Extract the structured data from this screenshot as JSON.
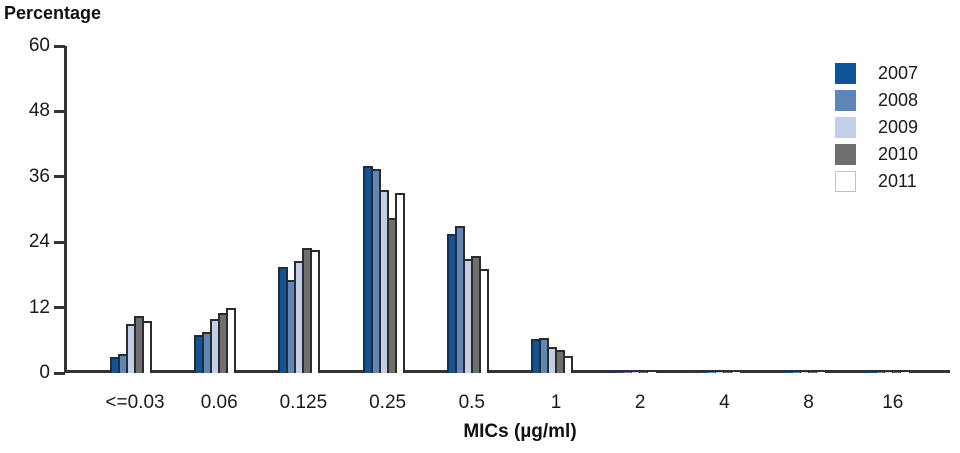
{
  "title": "Percentage",
  "xlabel": "MICs (µg/ml)",
  "chart_data": {
    "type": "bar",
    "title": "Percentage",
    "xlabel": "MICs (µg/ml)",
    "ylabel": "Percentage",
    "categories": [
      "<=0.03",
      "0.06",
      "0.125",
      "0.25",
      "0.5",
      "1",
      "2",
      "4",
      "8",
      "16"
    ],
    "series": [
      {
        "name": "2007",
        "color": "#0F5499",
        "values": [
          3.0,
          7.0,
          19.5,
          38.0,
          25.5,
          6.2,
          0.4,
          0.2,
          0.2,
          0.1
        ]
      },
      {
        "name": "2008",
        "color": "#5F86B8",
        "values": [
          3.5,
          7.5,
          17.0,
          37.5,
          27.0,
          6.5,
          0.3,
          0.2,
          0.2,
          0.1
        ]
      },
      {
        "name": "2009",
        "color": "#C3CFE8",
        "values": [
          9.0,
          10.0,
          20.5,
          33.5,
          21.0,
          4.8,
          0.3,
          0.2,
          0.1,
          0.2
        ]
      },
      {
        "name": "2010",
        "color": "#6F6F6F",
        "values": [
          10.5,
          11.0,
          23.0,
          28.5,
          21.5,
          4.3,
          0.2,
          0.1,
          0.1,
          0.2
        ]
      },
      {
        "name": "2011",
        "color": "#FFFFFF",
        "values": [
          9.5,
          12.0,
          22.5,
          33.0,
          19.0,
          3.1,
          0.1,
          0.1,
          0.1,
          0.1
        ]
      }
    ],
    "yticks": [
      0,
      12,
      24,
      36,
      48,
      60
    ],
    "ylim": [
      0,
      60
    ],
    "grid": false,
    "legend_position": "top-right",
    "bar_outline_color": "#2b2b2b",
    "axis_color": "#333333",
    "white_swatch_border": "#c0c0c0"
  }
}
